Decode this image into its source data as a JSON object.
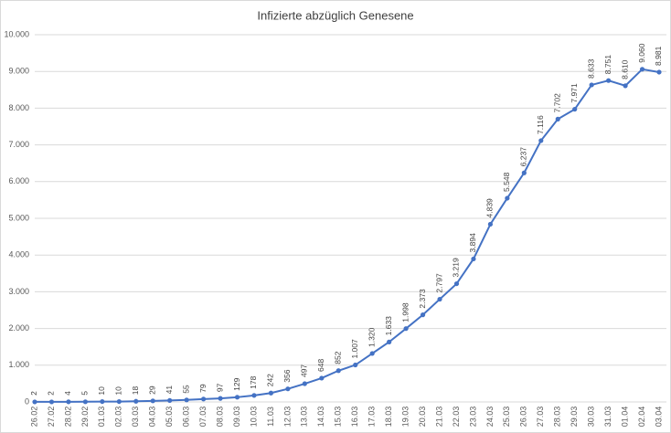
{
  "chart_data": {
    "type": "line",
    "title": "Infizierte abzüglich Genesene",
    "categories": [
      "26.02",
      "27.02",
      "28.02",
      "29.02",
      "01.03",
      "02.03",
      "03.03",
      "04.03",
      "05.03",
      "06.03",
      "07.03",
      "08.03",
      "09.03",
      "10.03",
      "11.03",
      "12.03",
      "13.03",
      "14.03",
      "15.03",
      "16.03",
      "17.03",
      "18.03",
      "19.03",
      "20.03",
      "21.03",
      "22.03",
      "23.03",
      "24.03",
      "25.03",
      "26.03",
      "27.03",
      "28.03",
      "29.03",
      "30.03",
      "31.03",
      "01.04",
      "02.04",
      "03.04"
    ],
    "series": [
      {
        "name": "Infizierte abzüglich Genesene",
        "color": "#4472c4",
        "values": [
          2,
          2,
          4,
          5,
          10,
          10,
          18,
          29,
          41,
          55,
          79,
          97,
          129,
          178,
          242,
          356,
          497,
          648,
          852,
          1007,
          1320,
          1633,
          1998,
          2373,
          2797,
          3219,
          3894,
          4839,
          5548,
          6237,
          7116,
          7702,
          7971,
          8633,
          8751,
          8610,
          9060,
          8981
        ],
        "value_labels": [
          "2",
          "2",
          "4",
          "5",
          "10",
          "10",
          "18",
          "29",
          "41",
          "55",
          "79",
          "97",
          "129",
          "178",
          "242",
          "356",
          "497",
          "648",
          "852",
          "1.007",
          "1.320",
          "1.633",
          "1.998",
          "2.373",
          "2.797",
          "3.219",
          "3.894",
          "4.839",
          "5.548",
          "6.237",
          "7.116",
          "7.702",
          "7.971",
          "8.633",
          "8.751",
          "8.610",
          "9.060",
          "8.981"
        ]
      }
    ],
    "ylim": [
      0,
      10000
    ],
    "yticks": [
      0,
      {
        "value": 1000,
        "label": "1.000"
      },
      {
        "value": 2000,
        "label": "2.000"
      },
      {
        "value": 3000,
        "label": "3.000"
      },
      {
        "value": 4000,
        "label": "4.000"
      },
      {
        "value": 5000,
        "label": "5.000"
      },
      {
        "value": 6000,
        "label": "6.000"
      },
      {
        "value": 7000,
        "label": "7.000"
      },
      {
        "value": 8000,
        "label": "8.000"
      },
      {
        "value": 9000,
        "label": "9.000"
      },
      {
        "value": 10000,
        "label": "10.000"
      }
    ],
    "grid": true
  }
}
